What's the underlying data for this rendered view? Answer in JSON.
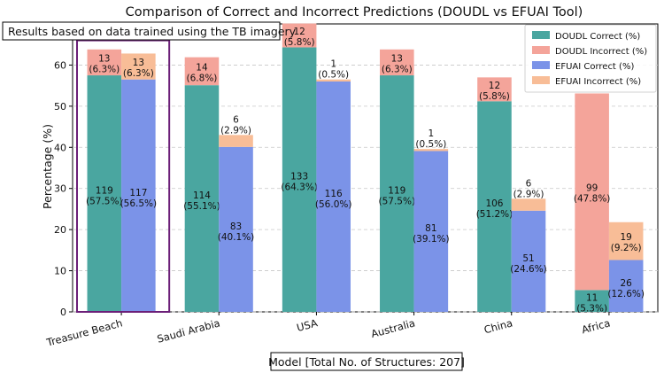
{
  "chart_data": {
    "type": "bar",
    "title": "Comparison of Correct and Incorrect Predictions (DOUDL vs EFUAI Tool)",
    "xlabel": "Model [Total No. of Structures: 207]",
    "ylabel": "Percentage (%)",
    "annotation": "Results based on data trained using the TB imagery",
    "categories": [
      "Treasure Beach",
      "Saudi Arabia",
      "USA",
      "Australia",
      "China",
      "Africa"
    ],
    "ylim": [
      0,
      70
    ],
    "yticks": [
      0,
      10,
      20,
      30,
      40,
      50,
      60
    ],
    "grid": "horizontal dashed",
    "legend_position": "top-right",
    "highlighted_category": "Treasure Beach",
    "series": [
      {
        "name": "DOUDL Correct (%)",
        "tool": "DOUDL",
        "kind": "correct",
        "color": "#4aa6a0",
        "values": [
          57.5,
          55.1,
          64.3,
          57.5,
          51.2,
          5.3
        ],
        "labels": [
          "119\n(57.5%)",
          "114\n(55.1%)",
          "133\n(64.3%)",
          "119\n(57.5%)",
          "106\n(51.2%)",
          "11\n(5.3%)"
        ]
      },
      {
        "name": "DOUDL Incorrect (%)",
        "tool": "DOUDL",
        "kind": "incorrect",
        "color": "#f4a49a",
        "values": [
          6.3,
          6.8,
          5.8,
          6.3,
          5.8,
          47.8
        ],
        "labels": [
          "13\n(6.3%)",
          "14\n(6.8%)",
          "12\n(5.8%)",
          "13\n(6.3%)",
          "12\n(5.8%)",
          "99\n(47.8%)"
        ]
      },
      {
        "name": "EFUAI Correct (%)",
        "tool": "EFUAI",
        "kind": "correct",
        "color": "#7b93e8",
        "values": [
          56.5,
          40.1,
          56.0,
          39.1,
          24.6,
          12.6
        ],
        "labels": [
          "117\n(56.5%)",
          "83\n(40.1%)",
          "116\n(56.0%)",
          "81\n(39.1%)",
          "51\n(24.6%)",
          "26\n(12.6%)"
        ]
      },
      {
        "name": "EFUAI Incorrect (%)",
        "tool": "EFUAI",
        "kind": "incorrect",
        "color": "#f8bd97",
        "values": [
          6.3,
          2.9,
          0.5,
          0.5,
          2.9,
          9.2
        ],
        "labels": [
          "13\n(6.3%)",
          "6\n(2.9%)",
          "1\n(0.5%)",
          "1\n(0.5%)",
          "6\n(2.9%)",
          "19\n(9.2%)"
        ]
      }
    ]
  }
}
